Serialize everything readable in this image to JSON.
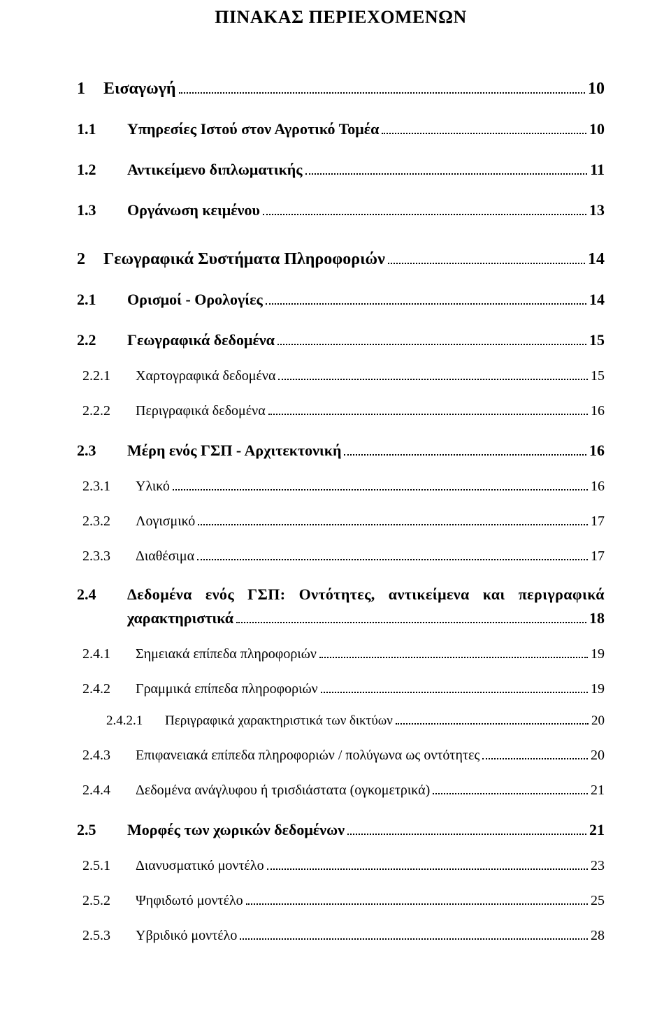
{
  "title": "ΠΙΝΑΚΑΣ ΠΕΡΙΕΧΟΜΕΝΩΝ",
  "entries": [
    {
      "level": 1,
      "num": "1",
      "label": "Εισαγωγή",
      "page": "10"
    },
    {
      "level": 2,
      "num": "1.1",
      "label": "Υπηρεσίες Ιστού στον Αγροτικό Τομέα",
      "page": "10"
    },
    {
      "level": 2,
      "num": "1.2",
      "label": "Αντικείμενο διπλωματικής",
      "page": "11"
    },
    {
      "level": 2,
      "num": "1.3",
      "label": "Οργάνωση κειμένου",
      "page": "13"
    },
    {
      "level": 1,
      "num": "2",
      "label": "Γεωγραφικά Συστήματα Πληροφοριών",
      "page": "14"
    },
    {
      "level": 2,
      "num": "2.1",
      "label": "Ορισμοί - Ορολογίες",
      "page": "14"
    },
    {
      "level": 2,
      "num": "2.2",
      "label": "Γεωγραφικά δεδομένα",
      "page": "15"
    },
    {
      "level": 3,
      "num": "2.2.1",
      "label": "Χαρτογραφικά δεδομένα",
      "page": "15"
    },
    {
      "level": 3,
      "num": "2.2.2",
      "label": "Περιγραφικά δεδομένα",
      "page": "16"
    },
    {
      "level": 2,
      "num": "2.3",
      "label": "Μέρη ενός ΓΣΠ - Αρχιτεκτονική",
      "page": "16"
    },
    {
      "level": 3,
      "num": "2.3.1",
      "label": "Υλικό",
      "page": "16"
    },
    {
      "level": 3,
      "num": "2.3.2",
      "label": "Λογισμικό",
      "page": "17"
    },
    {
      "level": 3,
      "num": "2.3.3",
      "label": "Διαθέσιμα",
      "page": "17"
    },
    {
      "level": 2,
      "num": "2.4",
      "label_line1_words": [
        "Δεδομένα",
        "ενός",
        "ΓΣΠ:",
        "Οντότητες,",
        "αντικείμενα",
        "και",
        "περιγραφικά"
      ],
      "label_line2": "χαρακτηριστικά",
      "page": "18",
      "wrap": true
    },
    {
      "level": 3,
      "num": "2.4.1",
      "label": "Σημειακά επίπεδα πληροφοριών",
      "page": "19"
    },
    {
      "level": 3,
      "num": "2.4.2",
      "label": "Γραμμικά επίπεδα πληροφοριών",
      "page": "19"
    },
    {
      "level": 4,
      "num": "2.4.2.1",
      "label": "Περιγραφικά χαρακτηριστικά των δικτύων",
      "page": "20"
    },
    {
      "level": 3,
      "num": "2.4.3",
      "label": "Επιφανειακά επίπεδα πληροφοριών / πολύγωνα ως οντότητες",
      "page": "20"
    },
    {
      "level": 3,
      "num": "2.4.4",
      "label": "Δεδομένα ανάγλυφου ή τρισδιάστατα (ογκομετρικά)",
      "page": "21"
    },
    {
      "level": 2,
      "num": "2.5",
      "label": "Μορφές των χωρικών δεδομένων",
      "page": "21"
    },
    {
      "level": 3,
      "num": "2.5.1",
      "label": "Διανυσματικό μοντέλο",
      "page": "23"
    },
    {
      "level": 3,
      "num": "2.5.2",
      "label": "Ψηφιδωτό μοντέλο",
      "page": "25"
    },
    {
      "level": 3,
      "num": "2.5.3",
      "label": "Υβριδικό μοντέλο",
      "page": "28"
    }
  ]
}
